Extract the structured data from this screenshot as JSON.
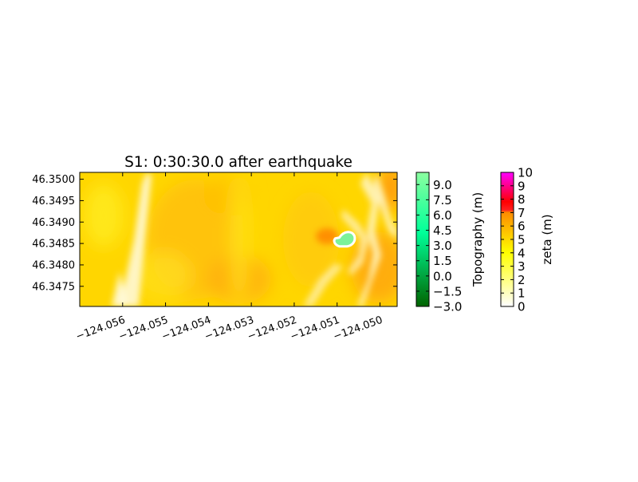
{
  "chart_data": {
    "type": "heatmap",
    "title": "S1: 0:30:30.0 after earthquake",
    "xlim": [
      -124.057,
      -124.0496
    ],
    "ylim": [
      46.34703,
      46.35016
    ],
    "x_ticks": [
      -124.056,
      -124.055,
      -124.054,
      -124.053,
      -124.052,
      -124.051,
      -124.05
    ],
    "x_tick_labels": [
      "−124.056",
      "−124.055",
      "−124.054",
      "−124.053",
      "−124.052",
      "−124.051",
      "−124.050"
    ],
    "y_ticks": [
      46.3475,
      46.348,
      46.3485,
      46.349,
      46.3495,
      46.35
    ],
    "y_tick_labels": [
      "46.3475",
      "46.3480",
      "46.3485",
      "46.3490",
      "46.3495",
      "46.3500"
    ],
    "topo_island": {
      "lon": -124.0508,
      "lat": 46.3486
    },
    "colorbars": [
      {
        "label": "Topography (m)",
        "range": [
          -3.0,
          10.2
        ],
        "ticks": [
          9.0,
          7.5,
          6.0,
          4.5,
          3.0,
          1.5,
          0.0,
          -1.5,
          -3.0
        ],
        "tick_labels": [
          "9.0",
          "7.5",
          "6.0",
          "4.5",
          "3.0",
          "1.5",
          "0.0",
          "−1.5",
          "−3.0"
        ],
        "colors": [
          "#006400",
          "#00ff99",
          "#8bffa0"
        ]
      },
      {
        "label": "zeta (m)",
        "range": [
          0,
          10
        ],
        "ticks": [
          10,
          9,
          8,
          7,
          6,
          5,
          4,
          3,
          2,
          1,
          0
        ],
        "tick_labels": [
          "10",
          "9",
          "8",
          "7",
          "6",
          "5",
          "4",
          "3",
          "2",
          "1",
          "0"
        ],
        "colors": [
          "#ffffff",
          "#ffff00",
          "#ff8c00",
          "#ff0000",
          "#ff00ff"
        ]
      }
    ]
  }
}
